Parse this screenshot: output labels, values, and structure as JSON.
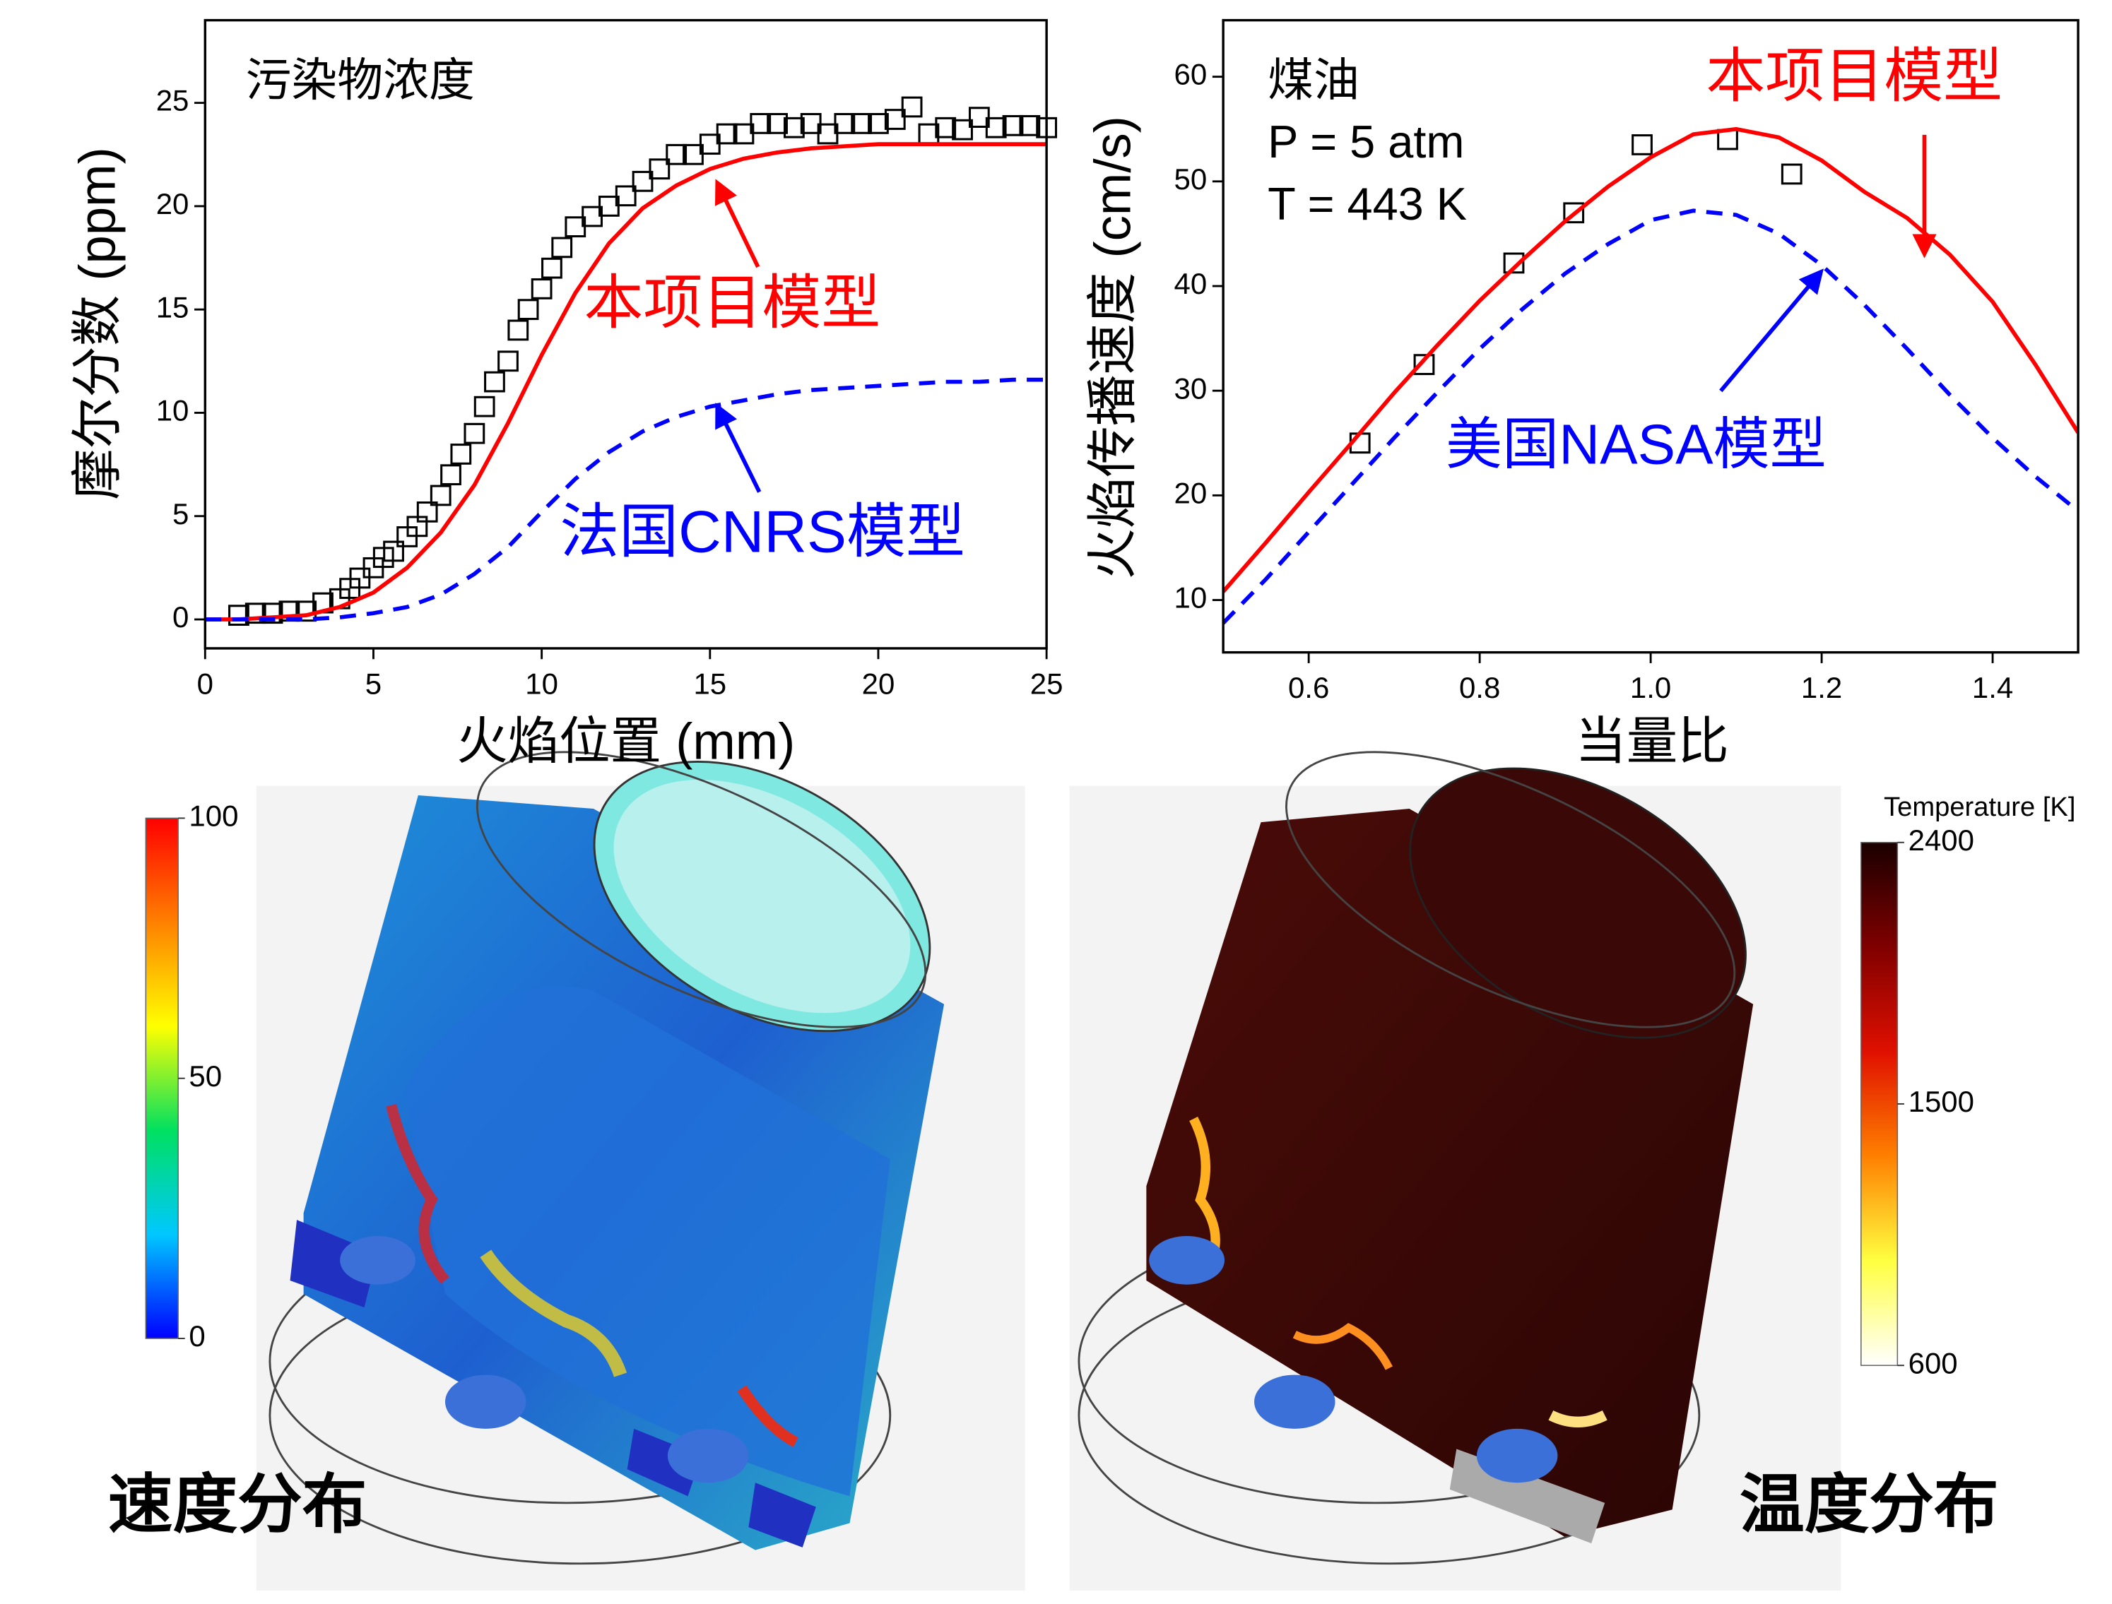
{
  "chart_data": [
    {
      "type": "line",
      "x_label": "火焰位置 (mm)",
      "y_label": "摩尔分数 (ppm)",
      "xlim": [
        0,
        25
      ],
      "ylim": [
        -1.4,
        29
      ],
      "xticks": [
        0,
        5,
        10,
        15,
        20,
        25
      ],
      "yticks": [
        0,
        5,
        10,
        15,
        20,
        25
      ],
      "annotations": [
        {
          "text": "污染物浓度",
          "color": "#000000"
        },
        {
          "text": "本项目模型",
          "color": "#ff0000"
        },
        {
          "text": "法国CNRS模型",
          "color": "#0000ff"
        }
      ],
      "series": [
        {
          "mode": "markers",
          "marker": "square",
          "color": "#000000",
          "x": [
            1,
            1.5,
            2,
            2.5,
            3,
            3.5,
            4,
            4.3,
            4.6,
            5,
            5.3,
            5.6,
            6,
            6.3,
            6.6,
            7,
            7.3,
            7.6,
            8,
            8.3,
            8.6,
            9,
            9.3,
            9.6,
            10,
            10.3,
            10.6,
            11,
            11.5,
            12,
            12.5,
            13,
            13.5,
            14,
            14.5,
            15,
            15.5,
            16,
            16.5,
            17,
            17.5,
            18,
            18.5,
            19,
            19.5,
            20,
            20.5,
            21,
            21.5,
            22,
            22.5,
            23,
            23.5,
            24,
            24.5,
            25
          ],
          "values": [
            0.2,
            0.3,
            0.3,
            0.4,
            0.4,
            0.8,
            1,
            1.5,
            2,
            2.5,
            3,
            3.3,
            4,
            4.5,
            5.2,
            6,
            7,
            8,
            9,
            10.3,
            11.5,
            12.5,
            14,
            15,
            16,
            17,
            18,
            19,
            19.5,
            20,
            20.5,
            21.2,
            21.8,
            22.5,
            22.5,
            23,
            23.5,
            23.5,
            24,
            24,
            23.8,
            24,
            23.5,
            24,
            24,
            24,
            24.2,
            24.8,
            23.5,
            23.8,
            23.7,
            24.3,
            23.8,
            23.9,
            23.9,
            23.8
          ]
        },
        {
          "mode": "line",
          "color": "#ff0000",
          "dash": false,
          "x": [
            0,
            1,
            2,
            3,
            4,
            5,
            6,
            7,
            8,
            9,
            10,
            11,
            12,
            13,
            14,
            15,
            16,
            17,
            18,
            19,
            20,
            21,
            22,
            23,
            24,
            25
          ],
          "values": [
            0,
            0,
            0.1,
            0.2,
            0.6,
            1.3,
            2.5,
            4.2,
            6.5,
            9.5,
            12.8,
            15.8,
            18.2,
            19.9,
            21,
            21.8,
            22.3,
            22.6,
            22.8,
            22.9,
            23,
            23,
            23,
            23,
            23,
            23
          ]
        },
        {
          "mode": "line",
          "color": "#0000ff",
          "dash": true,
          "x": [
            0,
            1,
            2,
            3,
            4,
            5,
            6,
            7,
            8,
            9,
            10,
            11,
            12,
            13,
            14,
            15,
            16,
            17,
            18,
            19,
            20,
            21,
            22,
            23,
            24,
            25
          ],
          "values": [
            0,
            0,
            0,
            0,
            0.1,
            0.3,
            0.6,
            1.2,
            2.2,
            3.5,
            5.2,
            6.8,
            8.1,
            9.1,
            9.8,
            10.3,
            10.6,
            10.9,
            11.1,
            11.2,
            11.3,
            11.4,
            11.5,
            11.5,
            11.6,
            11.6
          ]
        }
      ]
    },
    {
      "type": "line",
      "x_label": "当量比",
      "y_label": "火焰传播速度 (cm/s)",
      "xlim": [
        0.5,
        1.5
      ],
      "ylim": [
        5,
        65.4
      ],
      "xticks": [
        0.6,
        0.8,
        {
          "value": 1,
          "label": "1.0"
        },
        1.2,
        1.4
      ],
      "yticks": [
        10,
        20,
        30,
        40,
        50,
        60
      ],
      "annotations": [
        {
          "text": "煤油",
          "color": "#000000"
        },
        {
          "text": "P = 5 atm",
          "color": "#000000"
        },
        {
          "text": "T = 443 K",
          "color": "#000000"
        },
        {
          "text": "本项目模型",
          "color": "#ff0000"
        },
        {
          "text": "美国NASA模型",
          "color": "#0000ff"
        }
      ],
      "series": [
        {
          "mode": "markers",
          "marker": "square",
          "color": "#000000",
          "x": [
            0.66,
            0.735,
            0.84,
            0.91,
            0.99,
            1.09,
            1.165
          ],
          "values": [
            25,
            32.5,
            42.2,
            47,
            53.5,
            54,
            50.7
          ]
        },
        {
          "mode": "line",
          "color": "#ff0000",
          "dash": false,
          "x": [
            0.5,
            0.55,
            0.6,
            0.65,
            0.7,
            0.75,
            0.8,
            0.85,
            0.9,
            0.95,
            1,
            1.05,
            1.1,
            1.15,
            1.2,
            1.25,
            1.3,
            1.35,
            1.4,
            1.45,
            1.5
          ],
          "values": [
            10.8,
            15.5,
            20.3,
            25,
            29.8,
            34.3,
            38.6,
            42.5,
            46.2,
            49.5,
            52.3,
            54.5,
            55,
            54.2,
            52,
            49,
            46.5,
            43,
            38.5,
            32.5,
            26
          ]
        },
        {
          "mode": "line",
          "color": "#0000ff",
          "dash": true,
          "x": [
            0.5,
            0.55,
            0.6,
            0.65,
            0.7,
            0.75,
            0.8,
            0.85,
            0.9,
            0.95,
            1,
            1.05,
            1.1,
            1.15,
            1.2,
            1.25,
            1.3,
            1.35,
            1.4,
            1.45,
            1.5
          ],
          "values": [
            7.8,
            12,
            16.5,
            21,
            25.5,
            29.8,
            34,
            37.8,
            41.2,
            44,
            46.3,
            47.2,
            46.8,
            45,
            42,
            38.2,
            34,
            29.6,
            25.5,
            21.8,
            18.5
          ]
        }
      ]
    },
    {
      "type": "colorbar",
      "ylim": [
        0,
        100
      ],
      "yticks": [
        0,
        50,
        100
      ],
      "colors": [
        "#0000ff",
        "#00c8ff",
        "#00e060",
        "#ffff00",
        "#ff8000",
        "#ff0000"
      ]
    },
    {
      "type": "colorbar",
      "title": "Temperature [K]",
      "ylim": [
        600,
        2400
      ],
      "yticks": [
        600,
        1500,
        2400
      ],
      "colors": [
        "#ffffff",
        "#ffff40",
        "#ff8000",
        "#e01000",
        "#800000",
        "#1a0000"
      ]
    }
  ],
  "captions": {
    "velocity": "速度分布",
    "temperature": "温度分布"
  }
}
